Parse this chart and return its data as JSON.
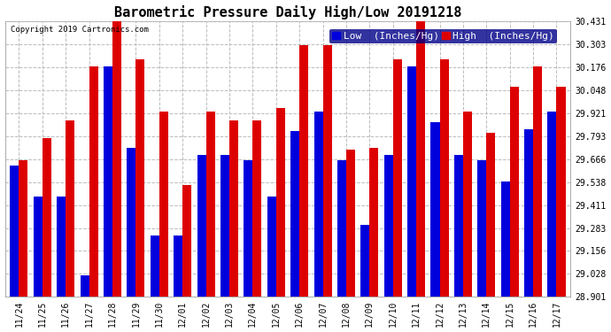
{
  "title": "Barometric Pressure Daily High/Low 20191218",
  "copyright": "Copyright 2019 Cartronics.com",
  "legend_low": "Low  (Inches/Hg)",
  "legend_high": "High  (Inches/Hg)",
  "dates": [
    "11/24",
    "11/25",
    "11/26",
    "11/27",
    "11/28",
    "11/29",
    "11/30",
    "12/01",
    "12/02",
    "12/03",
    "12/04",
    "12/05",
    "12/06",
    "12/07",
    "12/08",
    "12/09",
    "12/10",
    "12/11",
    "12/12",
    "12/13",
    "12/14",
    "12/15",
    "12/16",
    "12/17"
  ],
  "low": [
    29.63,
    29.46,
    29.46,
    29.02,
    30.18,
    29.73,
    29.24,
    29.24,
    29.69,
    29.69,
    29.66,
    29.46,
    29.82,
    29.93,
    29.66,
    29.3,
    29.69,
    30.18,
    29.87,
    29.69,
    29.66,
    29.54,
    29.83,
    29.93
  ],
  "high": [
    29.66,
    29.78,
    29.88,
    30.18,
    30.43,
    30.22,
    29.93,
    29.52,
    29.93,
    29.88,
    29.88,
    29.95,
    30.3,
    30.3,
    29.72,
    29.73,
    30.22,
    30.43,
    30.22,
    29.93,
    29.81,
    30.07,
    30.18,
    30.07
  ],
  "ylim_min": 28.901,
  "ylim_max": 30.431,
  "yticks": [
    28.901,
    29.028,
    29.156,
    29.283,
    29.411,
    29.538,
    29.666,
    29.793,
    29.921,
    30.048,
    30.176,
    30.303,
    30.431
  ],
  "low_color": "#0000dd",
  "high_color": "#dd0000",
  "background_color": "#ffffff",
  "grid_color": "#bbbbbb",
  "bar_width": 0.38,
  "title_fontsize": 11,
  "tick_fontsize": 7,
  "legend_fontsize": 8,
  "copyright_fontsize": 6.5
}
